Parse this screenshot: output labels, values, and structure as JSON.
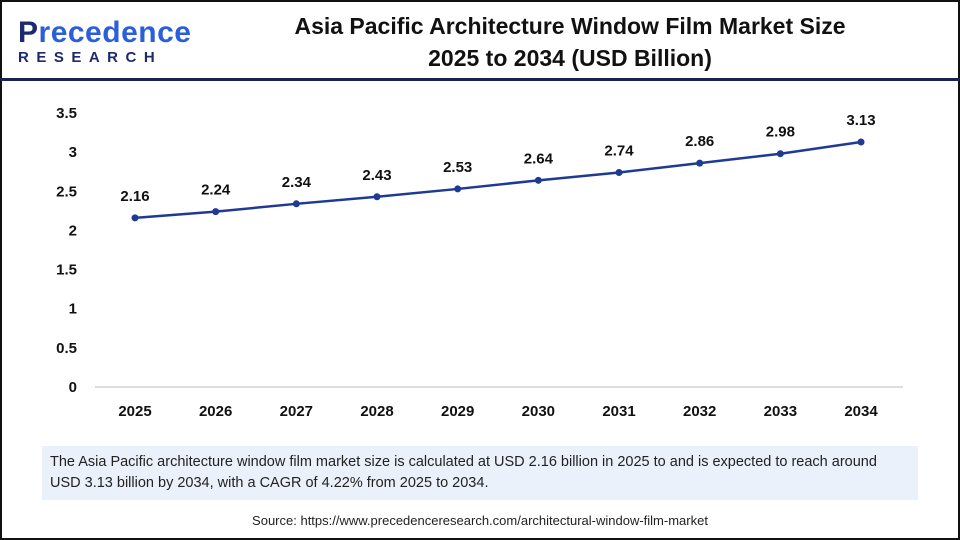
{
  "logo": {
    "text": "Precedence",
    "sub": "RESEARCH"
  },
  "title_line1": "Asia Pacific Architecture Window Film Market Size",
  "title_line2": "2025 to 2034 (USD Billion)",
  "note": "The Asia Pacific architecture window film market size is calculated at USD 2.16 billion in 2025 to and is expected to reach around USD 3.13 billion by 2034, with a CAGR of 4.22% from 2025 to 2034.",
  "source": "Source: https://www.precedenceresearch.com/architectural-window-film-market",
  "colors": {
    "line": "#1f3a93",
    "note_bg": "#eaf1fb",
    "header_rule": "#1a2250"
  },
  "chart_data": {
    "type": "line",
    "title": "Asia Pacific Architecture Window Film Market Size 2025 to 2034 (USD Billion)",
    "categories": [
      "2025",
      "2026",
      "2027",
      "2028",
      "2029",
      "2030",
      "2031",
      "2032",
      "2033",
      "2034"
    ],
    "values": [
      2.16,
      2.24,
      2.34,
      2.43,
      2.53,
      2.64,
      2.74,
      2.86,
      2.98,
      3.13
    ],
    "ylim": [
      0,
      3.5
    ],
    "yticks": [
      "0",
      "0.5",
      "1",
      "1.5",
      "2",
      "2.5",
      "3",
      "3.5"
    ],
    "grid": false,
    "data_labels": true
  }
}
